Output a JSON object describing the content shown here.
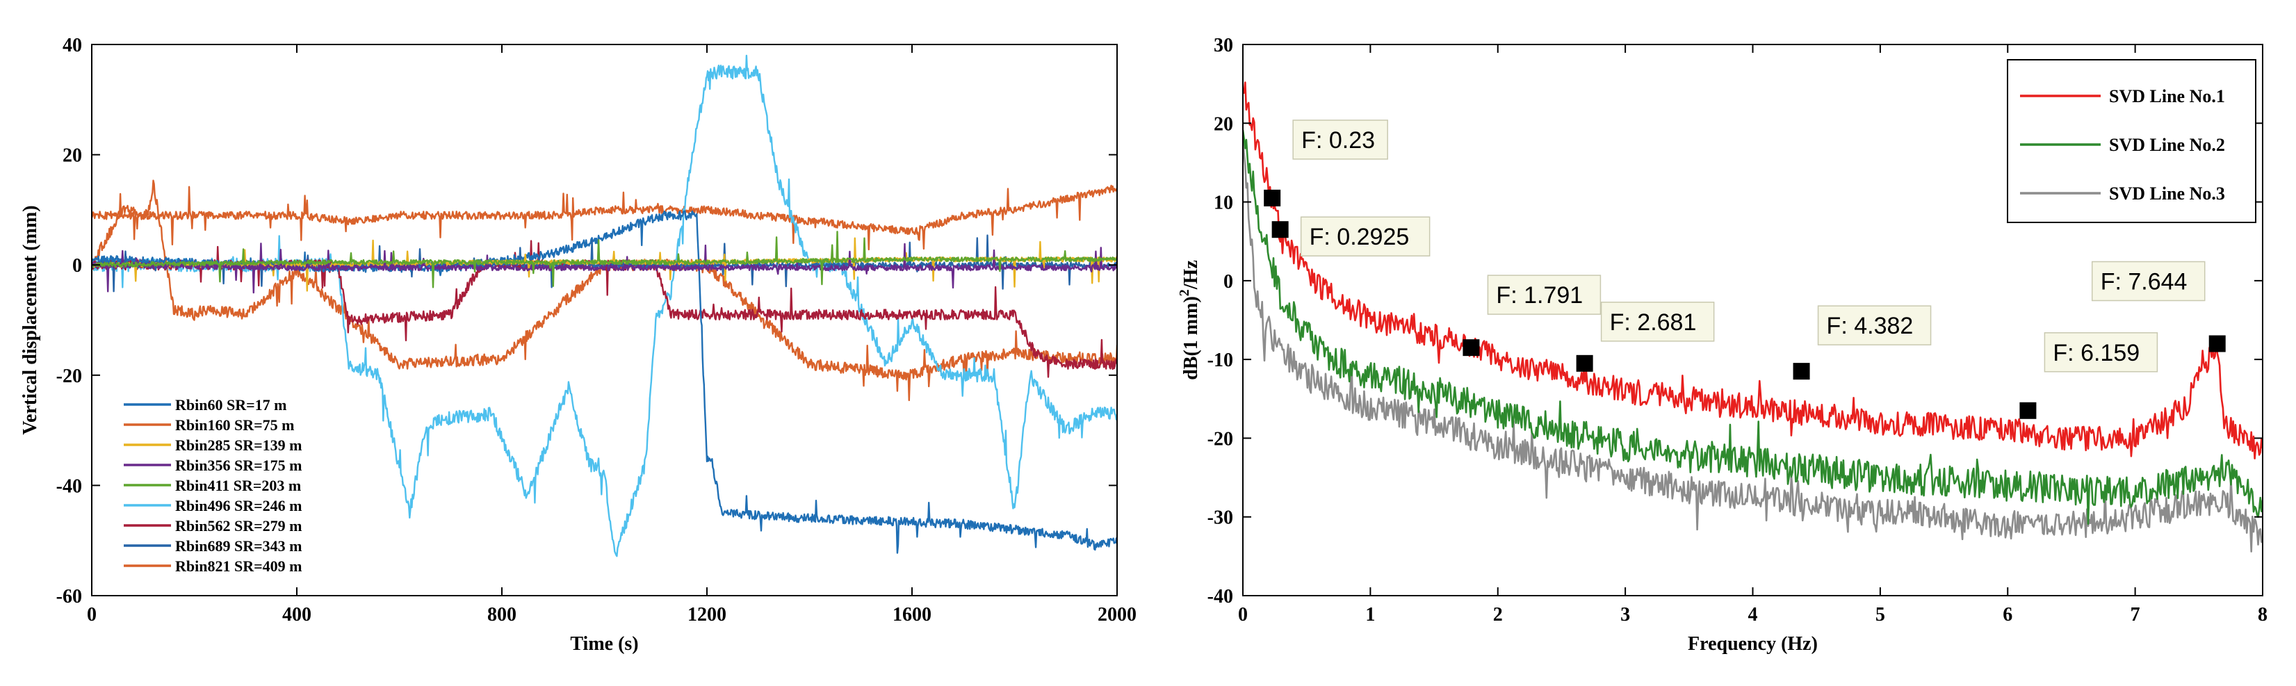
{
  "chart_data": [
    {
      "type": "line",
      "title": "",
      "xlabel": "Time (s)",
      "ylabel": "Vertical displacement (mm)",
      "xlim": [
        0,
        2000
      ],
      "ylim": [
        -60,
        40
      ],
      "xticks": [
        0,
        400,
        800,
        1200,
        1600,
        2000
      ],
      "yticks": [
        40,
        20,
        0,
        -20,
        -40,
        -60
      ],
      "grid": false,
      "legend_position": "bottom-left",
      "series": [
        {
          "name": "Rbin60 SR=17 m",
          "color": "#1f6fb5",
          "x": [
            0,
            300,
            500,
            700,
            900,
            1000,
            1080,
            1120,
            1180,
            1200,
            1210,
            1230,
            1400,
            1700,
            1900,
            1960,
            2000
          ],
          "y": [
            1,
            0,
            -0.5,
            -0.5,
            2,
            5,
            8,
            9,
            9,
            -35,
            -36,
            -45,
            -46,
            -47,
            -49,
            -51,
            -50
          ]
        },
        {
          "name": "Rbin160 SR=75 m",
          "color": "#d9622b",
          "x": [
            0,
            60,
            110,
            120,
            160,
            200,
            220,
            300,
            400,
            600,
            800,
            1000,
            1200,
            1400,
            1600,
            1700,
            1800,
            1900,
            2000
          ],
          "y": [
            0,
            10,
            9,
            15,
            -8,
            -9,
            -8,
            -9,
            -1,
            -18,
            -17,
            0,
            0,
            -18,
            -20,
            -17,
            -16,
            -17,
            -17
          ]
        },
        {
          "name": "Rbin285 SR=139 m",
          "color": "#e8b320",
          "x": [
            0,
            400,
            800,
            1200,
            1600,
            2000
          ],
          "y": [
            0,
            0,
            0.5,
            0.5,
            1,
            1
          ]
        },
        {
          "name": "Rbin356 SR=175 m",
          "color": "#6a2b8c",
          "x": [
            0,
            400,
            800,
            1200,
            1600,
            2000
          ],
          "y": [
            0,
            -0.5,
            -0.5,
            -0.5,
            -0.5,
            -0.5
          ]
        },
        {
          "name": "Rbin411 SR=203 m",
          "color": "#5fa62f",
          "x": [
            0,
            400,
            800,
            1200,
            1600,
            2000
          ],
          "y": [
            0,
            0.5,
            0.5,
            0.5,
            1,
            1
          ]
        },
        {
          "name": "Rbin496 SR=246 m",
          "color": "#4ec0ee",
          "x": [
            0,
            480,
            500,
            560,
            620,
            650,
            680,
            780,
            850,
            930,
            970,
            1000,
            1020,
            1080,
            1100,
            1130,
            1180,
            1200,
            1220,
            1300,
            1340,
            1400,
            1460,
            1550,
            1600,
            1660,
            1760,
            1800,
            1830,
            1900,
            1950,
            2000
          ],
          "y": [
            0,
            0,
            -18,
            -20,
            -45,
            -30,
            -28,
            -27,
            -42,
            -22,
            -36,
            -38,
            -53,
            -36,
            -10,
            -5,
            25,
            34,
            35,
            35,
            15,
            0,
            0,
            -18,
            -10,
            -20,
            -20,
            -45,
            -20,
            -30,
            -27,
            -27
          ]
        },
        {
          "name": "Rbin562 SR=279 m",
          "color": "#a81e3a",
          "x": [
            0,
            480,
            500,
            700,
            760,
            780,
            900,
            1100,
            1130,
            1300,
            1500,
            1700,
            1800,
            1840,
            1860,
            1900,
            2000
          ],
          "y": [
            0,
            0,
            -10,
            -9,
            0,
            0,
            0,
            0,
            -9,
            -9,
            -9,
            -9,
            -9,
            -16,
            -17,
            -18,
            -18
          ]
        },
        {
          "name": "Rbin689 SR=343 m",
          "color": "#2765a8",
          "x": [
            0,
            200,
            400,
            600,
            800,
            1000,
            1100,
            1200,
            1400,
            1600,
            1800,
            2000
          ],
          "y": [
            0,
            0,
            0,
            0,
            0,
            0,
            0,
            0,
            0,
            0,
            0,
            0
          ]
        },
        {
          "name": "Rbin821 SR=409 m",
          "color": "#d9622b",
          "x": [
            0,
            100,
            200,
            300,
            400,
            500,
            600,
            700,
            800,
            900,
            1000,
            1100,
            1200,
            1300,
            1400,
            1500,
            1600,
            1700,
            1800,
            1900,
            2000
          ],
          "y": [
            9,
            9,
            9,
            9,
            9,
            8,
            9,
            9,
            9,
            9,
            10,
            10,
            10,
            9,
            8,
            7,
            6,
            9,
            10,
            12,
            14
          ]
        }
      ]
    },
    {
      "type": "line",
      "title": "",
      "xlabel": "Frequency (Hz)",
      "ylabel": "dB(1 mm)²/Hz",
      "ylabel_base": "dB(1 mm)",
      "ylabel_sup": "2",
      "ylabel_tail": "/Hz",
      "xlim": [
        0,
        8
      ],
      "ylim": [
        -40,
        30
      ],
      "xticks": [
        0,
        1,
        2,
        3,
        4,
        5,
        6,
        7,
        8
      ],
      "yticks": [
        30,
        20,
        10,
        0,
        -10,
        -20,
        -30,
        -40
      ],
      "grid": false,
      "legend_position": "top-right",
      "series": [
        {
          "name": "SVD Line No.1",
          "color": "#e8201e",
          "x": [
            0,
            0.1,
            0.2,
            0.3,
            0.5,
            0.7,
            1,
            1.3,
            1.5,
            1.8,
            2,
            2.5,
            3,
            3.5,
            4,
            4.5,
            5,
            5.5,
            6,
            6.5,
            7,
            7.4,
            7.5,
            7.64,
            7.7,
            8
          ],
          "y": [
            25,
            18,
            12,
            6,
            1,
            -2,
            -5,
            -6,
            -7,
            -8.5,
            -10,
            -12,
            -14,
            -15,
            -16,
            -17,
            -18,
            -18.5,
            -19,
            -20,
            -20,
            -16,
            -12,
            -8,
            -18,
            -22
          ]
        },
        {
          "name": "SVD Line No.2",
          "color": "#2e8a2e",
          "x": [
            0,
            0.1,
            0.2,
            0.3,
            0.5,
            0.7,
            1,
            1.5,
            2,
            2.5,
            3,
            3.5,
            4,
            4.5,
            5,
            5.5,
            6,
            6.5,
            7,
            7.5,
            7.7,
            8
          ],
          "y": [
            20,
            10,
            3,
            -2,
            -7,
            -10,
            -12,
            -14,
            -17,
            -19,
            -21,
            -22,
            -23,
            -24,
            -25,
            -25.5,
            -26,
            -26.5,
            -27,
            -25,
            -24,
            -29
          ]
        },
        {
          "name": "SVD Line No.3",
          "color": "#8c8c8c",
          "x": [
            0,
            0.1,
            0.2,
            0.3,
            0.5,
            0.7,
            1,
            1.5,
            2,
            2.5,
            3,
            3.5,
            4,
            4.5,
            5,
            5.5,
            6,
            6.5,
            7,
            7.5,
            7.7,
            8
          ],
          "y": [
            18,
            -2,
            -6,
            -9,
            -12,
            -14,
            -16,
            -18,
            -21,
            -23,
            -25,
            -26.5,
            -27.5,
            -28.5,
            -29.5,
            -30,
            -31,
            -31,
            -30,
            -28,
            -28,
            -33
          ]
        }
      ],
      "annotations": [
        {
          "label": "F: 0.23",
          "x": 0.23,
          "y": 10.5
        },
        {
          "label": "F: 0.2925",
          "x": 0.2925,
          "y": 6.5
        },
        {
          "label": "F: 1.791",
          "x": 1.791,
          "y": -8.5
        },
        {
          "label": "F: 2.681",
          "x": 2.681,
          "y": -10.5
        },
        {
          "label": "F: 4.382",
          "x": 4.382,
          "y": -11.5
        },
        {
          "label": "F: 6.159",
          "x": 6.159,
          "y": -16.5
        },
        {
          "label": "F: 7.644",
          "x": 7.644,
          "y": -8
        }
      ]
    }
  ]
}
